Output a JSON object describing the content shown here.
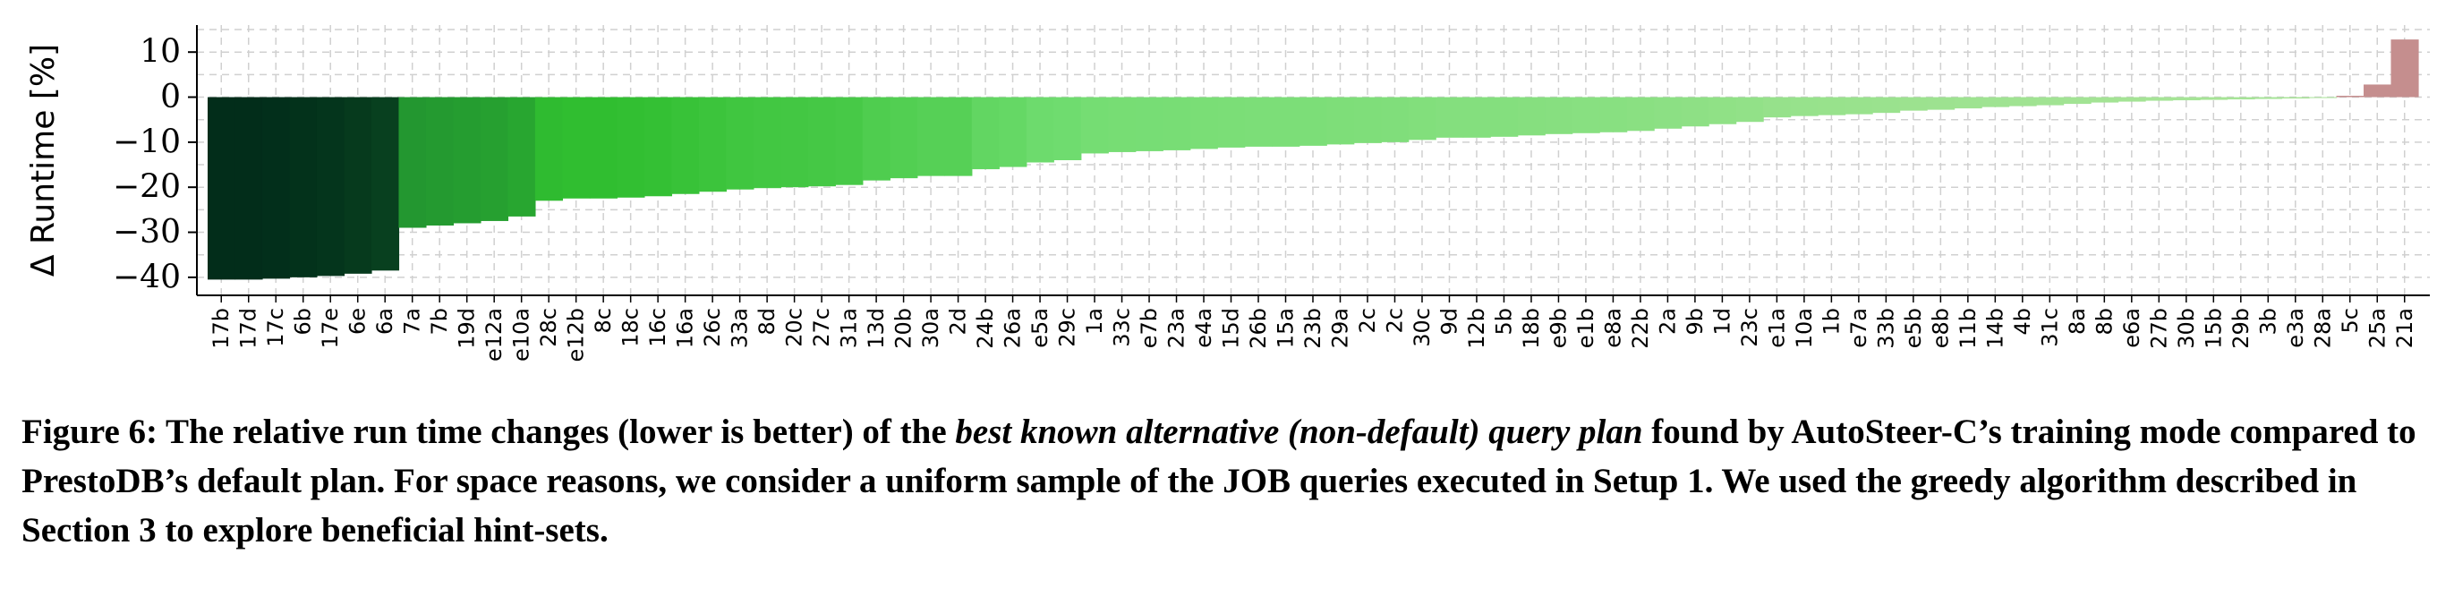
{
  "chart_data": {
    "type": "bar",
    "ylabel": "Δ Runtime [%]",
    "ylim": [
      -44,
      16
    ],
    "yticks": [
      10,
      0,
      -10,
      -20,
      -30,
      -40
    ],
    "grid": true,
    "categories": [
      "17b",
      "17d",
      "17c",
      "6b",
      "17e",
      "6e",
      "6a",
      "7a",
      "7b",
      "19d",
      "e12a",
      "e10a",
      "28c",
      "e12b",
      "8c",
      "18c",
      "16c",
      "16a",
      "26c",
      "33a",
      "8d",
      "20c",
      "27c",
      "31a",
      "13d",
      "20b",
      "30a",
      "2d",
      "24b",
      "26a",
      "e5a",
      "29c",
      "1a",
      "33c",
      "e7b",
      "23a",
      "e4a",
      "15d",
      "26b",
      "15a",
      "23b",
      "29a",
      "2c",
      "2c",
      "30c",
      "9d",
      "12b",
      "5b",
      "18b",
      "e9b",
      "e1b",
      "e8a",
      "22b",
      "2a",
      "9b",
      "1d",
      "23c",
      "e1a",
      "10a",
      "1b",
      "e7a",
      "33b",
      "e5b",
      "e8b",
      "11b",
      "14b",
      "4b",
      "31c",
      "8a",
      "8b",
      "e6a",
      "27b",
      "30b",
      "15b",
      "29b",
      "3b",
      "e3a",
      "28a",
      "5c",
      "25a",
      "21a"
    ],
    "values": [
      -40.5,
      -40.5,
      -40.3,
      -40,
      -39.7,
      -39.2,
      -38.5,
      -29,
      -28.5,
      -28,
      -27.5,
      -26.5,
      -23,
      -22.5,
      -22.5,
      -22.3,
      -22,
      -21.5,
      -21,
      -20.5,
      -20.2,
      -20,
      -19.8,
      -19.5,
      -18.5,
      -18,
      -17.5,
      -17.5,
      -16,
      -15.5,
      -14.5,
      -14,
      -12.5,
      -12.2,
      -12,
      -11.8,
      -11.5,
      -11.2,
      -11,
      -11,
      -10.8,
      -10.5,
      -10.2,
      -10,
      -9.5,
      -9,
      -9,
      -8.8,
      -8.5,
      -8.2,
      -8,
      -7.8,
      -7.5,
      -7,
      -6.5,
      -6,
      -5.5,
      -4.5,
      -4.2,
      -4,
      -3.8,
      -3.5,
      -3,
      -2.8,
      -2.5,
      -2.2,
      -2,
      -1.8,
      -1.5,
      -1.2,
      -1,
      -0.8,
      -0.7,
      -0.6,
      -0.5,
      -0.4,
      -0.3,
      -0.2,
      0.3,
      2.8,
      12.8
    ]
  },
  "caption": {
    "prefix": "Figure 6: The relative run time changes (lower is better) of the ",
    "emphasis": "best known alternative (non-default) query plan",
    "suffix": " found by AutoSteer-C’s training mode compared to PrestoDB’s default plan. For space reasons, we consider a uniform sample of the JOB queries executed in Setup 1. We used the greedy algorithm described in Section 3 to explore beneficial hint-sets."
  }
}
